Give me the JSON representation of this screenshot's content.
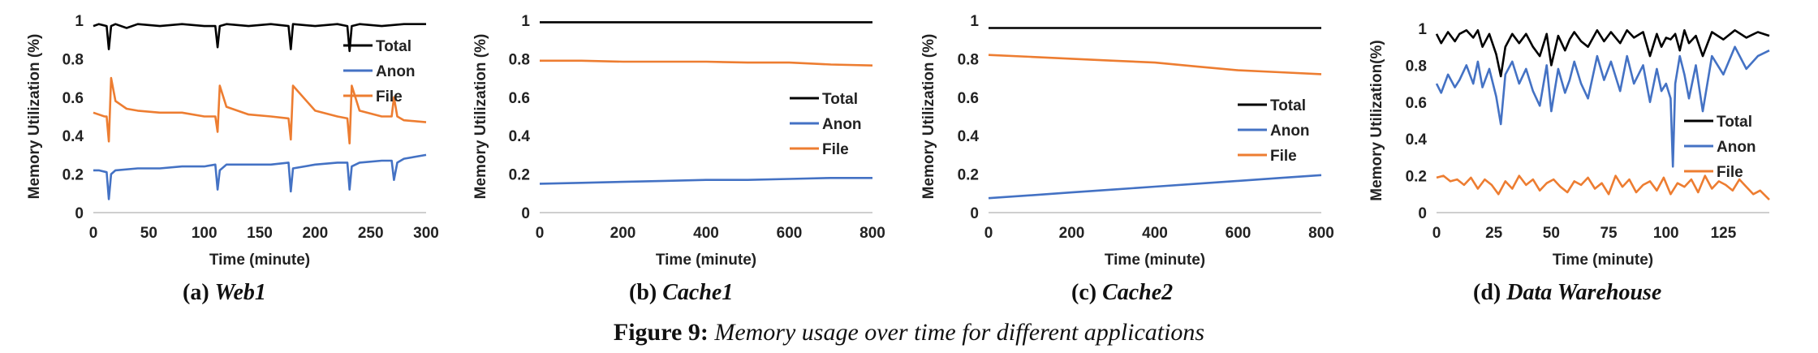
{
  "figure": {
    "number": "Figure 9:",
    "caption": "Memory usage over time for different applications"
  },
  "colors": {
    "total": "#000000",
    "anon": "#4472C4",
    "file": "#ED7D31"
  },
  "chart_data": [
    {
      "type": "line",
      "subcaption_prefix": "(a)",
      "subcaption_name": "Web1",
      "xlabel": "Time (minute)",
      "ylabel": "Memory Utilization (%)",
      "xlim": [
        0,
        300
      ],
      "ylim": [
        0,
        1
      ],
      "xticks": [
        0,
        50,
        100,
        150,
        200,
        250,
        300
      ],
      "yticks": [
        0,
        0.2,
        0.4,
        0.6,
        0.8,
        1
      ],
      "ytick_labels": [
        "0",
        "0.2",
        "0.4",
        "0.6",
        "0.8",
        "1"
      ],
      "legend_position": "top-right",
      "grid": false,
      "series": [
        {
          "name": "Total",
          "color": "#000000",
          "x": [
            0,
            5,
            12,
            14,
            16,
            20,
            30,
            40,
            60,
            80,
            100,
            110,
            112,
            114,
            120,
            140,
            160,
            176,
            178,
            180,
            200,
            220,
            229,
            231,
            233,
            240,
            260,
            280,
            300
          ],
          "y": [
            0.97,
            0.98,
            0.97,
            0.85,
            0.97,
            0.98,
            0.96,
            0.98,
            0.97,
            0.98,
            0.97,
            0.97,
            0.86,
            0.97,
            0.98,
            0.97,
            0.98,
            0.97,
            0.85,
            0.98,
            0.97,
            0.98,
            0.97,
            0.84,
            0.97,
            0.98,
            0.97,
            0.98,
            0.98
          ]
        },
        {
          "name": "Anon",
          "color": "#4472C4",
          "x": [
            0,
            5,
            12,
            14,
            16,
            20,
            40,
            60,
            80,
            100,
            110,
            112,
            114,
            120,
            140,
            160,
            176,
            178,
            180,
            200,
            220,
            229,
            231,
            233,
            240,
            260,
            269,
            271,
            274,
            280,
            300
          ],
          "y": [
            0.22,
            0.22,
            0.21,
            0.07,
            0.2,
            0.22,
            0.23,
            0.23,
            0.24,
            0.24,
            0.25,
            0.12,
            0.22,
            0.25,
            0.25,
            0.25,
            0.26,
            0.11,
            0.23,
            0.25,
            0.26,
            0.26,
            0.12,
            0.24,
            0.26,
            0.27,
            0.27,
            0.17,
            0.26,
            0.28,
            0.3
          ]
        },
        {
          "name": "File",
          "color": "#ED7D31",
          "x": [
            0,
            10,
            12,
            14,
            16,
            20,
            30,
            40,
            60,
            80,
            100,
            110,
            112,
            114,
            120,
            140,
            160,
            176,
            178,
            180,
            200,
            220,
            229,
            231,
            233,
            240,
            260,
            269,
            271,
            274,
            280,
            300
          ],
          "y": [
            0.52,
            0.5,
            0.5,
            0.37,
            0.7,
            0.58,
            0.54,
            0.53,
            0.52,
            0.52,
            0.5,
            0.5,
            0.42,
            0.66,
            0.55,
            0.51,
            0.5,
            0.49,
            0.38,
            0.66,
            0.53,
            0.5,
            0.49,
            0.36,
            0.66,
            0.53,
            0.5,
            0.5,
            0.6,
            0.5,
            0.48,
            0.47
          ]
        }
      ]
    },
    {
      "type": "line",
      "subcaption_prefix": "(b)",
      "subcaption_name": "Cache1",
      "xlabel": "Time (minute)",
      "ylabel": "Memory Utilization (%)",
      "xlim": [
        0,
        800
      ],
      "ylim": [
        0,
        1
      ],
      "xticks": [
        0,
        200,
        400,
        600,
        800
      ],
      "yticks": [
        0,
        0.2,
        0.4,
        0.6,
        0.8,
        1
      ],
      "ytick_labels": [
        "0",
        "0.2",
        "0.4",
        "0.6",
        "0.8",
        "1"
      ],
      "legend_position": "center-right",
      "grid": false,
      "series": [
        {
          "name": "Total",
          "color": "#000000",
          "x": [
            0,
            100,
            200,
            300,
            400,
            500,
            600,
            700,
            800
          ],
          "y": [
            0.99,
            0.99,
            0.99,
            0.99,
            0.99,
            0.99,
            0.99,
            0.99,
            0.99
          ]
        },
        {
          "name": "Anon",
          "color": "#4472C4",
          "x": [
            0,
            100,
            200,
            300,
            400,
            500,
            600,
            700,
            800
          ],
          "y": [
            0.15,
            0.155,
            0.16,
            0.165,
            0.17,
            0.17,
            0.175,
            0.18,
            0.18
          ]
        },
        {
          "name": "File",
          "color": "#ED7D31",
          "x": [
            0,
            100,
            200,
            300,
            400,
            500,
            600,
            700,
            800
          ],
          "y": [
            0.79,
            0.79,
            0.785,
            0.785,
            0.785,
            0.78,
            0.78,
            0.77,
            0.765
          ]
        }
      ]
    },
    {
      "type": "line",
      "subcaption_prefix": "(c)",
      "subcaption_name": "Cache2",
      "xlabel": "Time (minute)",
      "ylabel": "Memory Utilization (%)",
      "xlim": [
        0,
        800
      ],
      "ylim": [
        0,
        1
      ],
      "xticks": [
        0,
        200,
        400,
        600,
        800
      ],
      "yticks": [
        0,
        0.2,
        0.4,
        0.6,
        0.8,
        1
      ],
      "ytick_labels": [
        "0",
        "0.2",
        "0.4",
        "0.6",
        "0.8",
        "1"
      ],
      "legend_position": "center-right",
      "grid": false,
      "series": [
        {
          "name": "Total",
          "color": "#000000",
          "x": [
            0,
            100,
            200,
            300,
            400,
            500,
            600,
            700,
            800
          ],
          "y": [
            0.96,
            0.96,
            0.96,
            0.96,
            0.96,
            0.96,
            0.96,
            0.96,
            0.96
          ]
        },
        {
          "name": "Anon",
          "color": "#4472C4",
          "x": [
            0,
            100,
            200,
            300,
            400,
            500,
            600,
            700,
            800
          ],
          "y": [
            0.075,
            0.09,
            0.105,
            0.12,
            0.135,
            0.15,
            0.165,
            0.18,
            0.195
          ]
        },
        {
          "name": "File",
          "color": "#ED7D31",
          "x": [
            0,
            100,
            200,
            300,
            400,
            500,
            600,
            700,
            800
          ],
          "y": [
            0.82,
            0.81,
            0.8,
            0.79,
            0.78,
            0.76,
            0.74,
            0.73,
            0.72
          ]
        }
      ]
    },
    {
      "type": "line",
      "subcaption_prefix": "(d)",
      "subcaption_name": "Data Warehouse",
      "xlabel": "Time (minute)",
      "ylabel": "Memory Utilization(%)",
      "xlim": [
        0,
        145
      ],
      "ylim": [
        0,
        1
      ],
      "xticks": [
        0,
        25,
        50,
        75,
        100,
        125
      ],
      "yticks": [
        0,
        0.2,
        0.4,
        0.6,
        0.8,
        1
      ],
      "ytick_labels": [
        "0",
        "0.2",
        "0.4",
        "0.6",
        "0.8",
        "1"
      ],
      "legend_position": "center-right",
      "grid": false,
      "series": [
        {
          "name": "Total",
          "color": "#000000",
          "x": [
            0,
            2,
            5,
            8,
            10,
            13,
            16,
            18,
            20,
            23,
            26,
            28,
            30,
            33,
            36,
            39,
            42,
            45,
            48,
            50,
            53,
            56,
            58,
            60,
            63,
            66,
            70,
            73,
            76,
            80,
            83,
            86,
            90,
            93,
            96,
            98,
            100,
            102,
            104,
            106,
            108,
            110,
            113,
            116,
            120,
            125,
            130,
            135,
            140,
            145
          ],
          "y": [
            0.97,
            0.92,
            0.98,
            0.93,
            0.97,
            0.99,
            0.95,
            0.99,
            0.9,
            0.97,
            0.86,
            0.74,
            0.9,
            0.97,
            0.92,
            0.97,
            0.9,
            0.85,
            0.97,
            0.8,
            0.96,
            0.88,
            0.94,
            0.98,
            0.93,
            0.9,
            0.99,
            0.93,
            0.98,
            0.92,
            0.99,
            0.95,
            0.98,
            0.85,
            0.97,
            0.9,
            0.95,
            0.94,
            0.97,
            0.88,
            0.99,
            0.92,
            0.96,
            0.85,
            0.98,
            0.94,
            0.99,
            0.95,
            0.98,
            0.96
          ]
        },
        {
          "name": "Anon",
          "color": "#4472C4",
          "x": [
            0,
            2,
            5,
            8,
            10,
            13,
            16,
            18,
            20,
            23,
            26,
            28,
            30,
            33,
            36,
            39,
            42,
            45,
            48,
            50,
            53,
            56,
            58,
            60,
            63,
            66,
            70,
            73,
            76,
            80,
            83,
            86,
            90,
            93,
            96,
            98,
            100,
            102,
            103,
            104,
            106,
            108,
            110,
            113,
            116,
            120,
            125,
            130,
            135,
            140,
            145
          ],
          "y": [
            0.7,
            0.65,
            0.75,
            0.68,
            0.72,
            0.8,
            0.7,
            0.82,
            0.68,
            0.78,
            0.63,
            0.48,
            0.75,
            0.82,
            0.7,
            0.78,
            0.66,
            0.58,
            0.8,
            0.55,
            0.78,
            0.65,
            0.72,
            0.82,
            0.7,
            0.62,
            0.85,
            0.72,
            0.82,
            0.66,
            0.85,
            0.7,
            0.8,
            0.6,
            0.78,
            0.66,
            0.7,
            0.62,
            0.25,
            0.7,
            0.85,
            0.75,
            0.62,
            0.8,
            0.55,
            0.85,
            0.75,
            0.9,
            0.78,
            0.85,
            0.88
          ]
        },
        {
          "name": "File",
          "color": "#ED7D31",
          "x": [
            0,
            3,
            6,
            9,
            12,
            15,
            18,
            21,
            24,
            27,
            30,
            33,
            36,
            39,
            42,
            45,
            48,
            51,
            54,
            57,
            60,
            63,
            66,
            69,
            72,
            75,
            78,
            81,
            84,
            87,
            90,
            93,
            96,
            99,
            102,
            105,
            108,
            111,
            114,
            117,
            120,
            123,
            126,
            129,
            132,
            135,
            138,
            141,
            145
          ],
          "y": [
            0.19,
            0.2,
            0.17,
            0.18,
            0.15,
            0.19,
            0.13,
            0.18,
            0.15,
            0.1,
            0.17,
            0.13,
            0.2,
            0.15,
            0.18,
            0.12,
            0.16,
            0.18,
            0.14,
            0.11,
            0.17,
            0.15,
            0.19,
            0.13,
            0.16,
            0.1,
            0.2,
            0.14,
            0.18,
            0.11,
            0.15,
            0.17,
            0.12,
            0.19,
            0.1,
            0.16,
            0.14,
            0.18,
            0.11,
            0.2,
            0.13,
            0.17,
            0.15,
            0.12,
            0.18,
            0.14,
            0.1,
            0.12,
            0.07
          ]
        }
      ]
    }
  ]
}
